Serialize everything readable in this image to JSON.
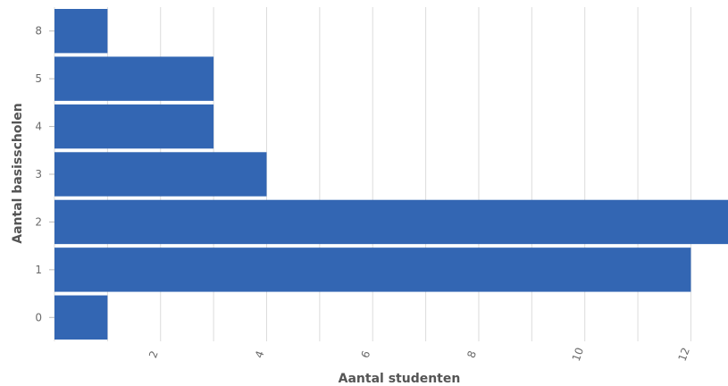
{
  "chart_data": {
    "type": "bar",
    "orientation": "horizontal",
    "categories": [
      "8",
      "5",
      "4",
      "3",
      "2",
      "1",
      "0"
    ],
    "values": [
      1,
      3,
      3,
      4,
      13,
      12,
      1
    ],
    "xlabel": "Aantal studenten",
    "ylabel": "Aantal basisscholen",
    "xlim": [
      0,
      12.7
    ],
    "xticks": [
      2,
      4,
      6,
      8,
      10,
      12
    ],
    "grid": true,
    "bar_color": "#3366b3"
  }
}
